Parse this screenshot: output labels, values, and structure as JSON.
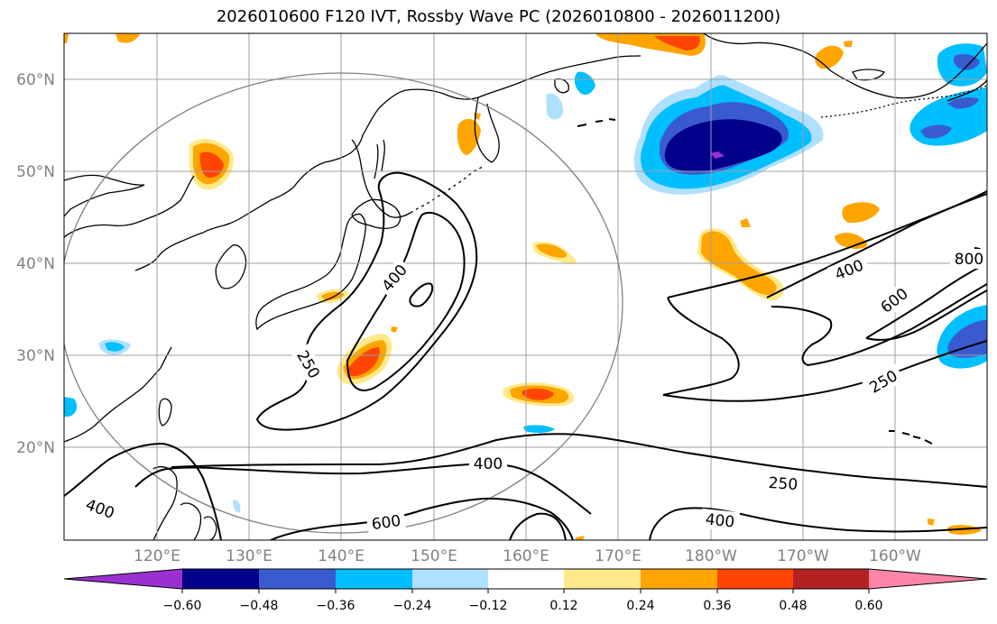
{
  "title": "2026010600 F120 IVT, Rossby Wave PC (2026010800 - 2026011200)",
  "lon_labels": [
    "120°E",
    "130°E",
    "140°E",
    "150°E",
    "160°E",
    "170°E",
    "180°W",
    "170°W",
    "160°W"
  ],
  "lat_labels": [
    "60°N",
    "50°N",
    "40°N",
    "30°N",
    "20°N"
  ],
  "contour_labels": [
    "400",
    "250",
    "400",
    "800",
    "600",
    "250",
    "400",
    "250",
    "400",
    "600",
    "400"
  ],
  "colorbar": {
    "ticks": [
      "−0.60",
      "−0.48",
      "−0.36",
      "−0.24",
      "−0.12",
      "0.12",
      "0.24",
      "0.36",
      "0.48",
      "0.60"
    ],
    "colors": [
      "#9b30d0",
      "#00008b",
      "#3a5bd0",
      "#00bfff",
      "#b0e0ff",
      "#ffffff",
      "#ffe98a",
      "#ffa500",
      "#ff4500",
      "#b22222",
      "#ff85a8"
    ]
  },
  "colors": {
    "coast": "#000000",
    "grid": "#a0a0a0",
    "contour": "#000000",
    "circle": "#808080"
  }
}
